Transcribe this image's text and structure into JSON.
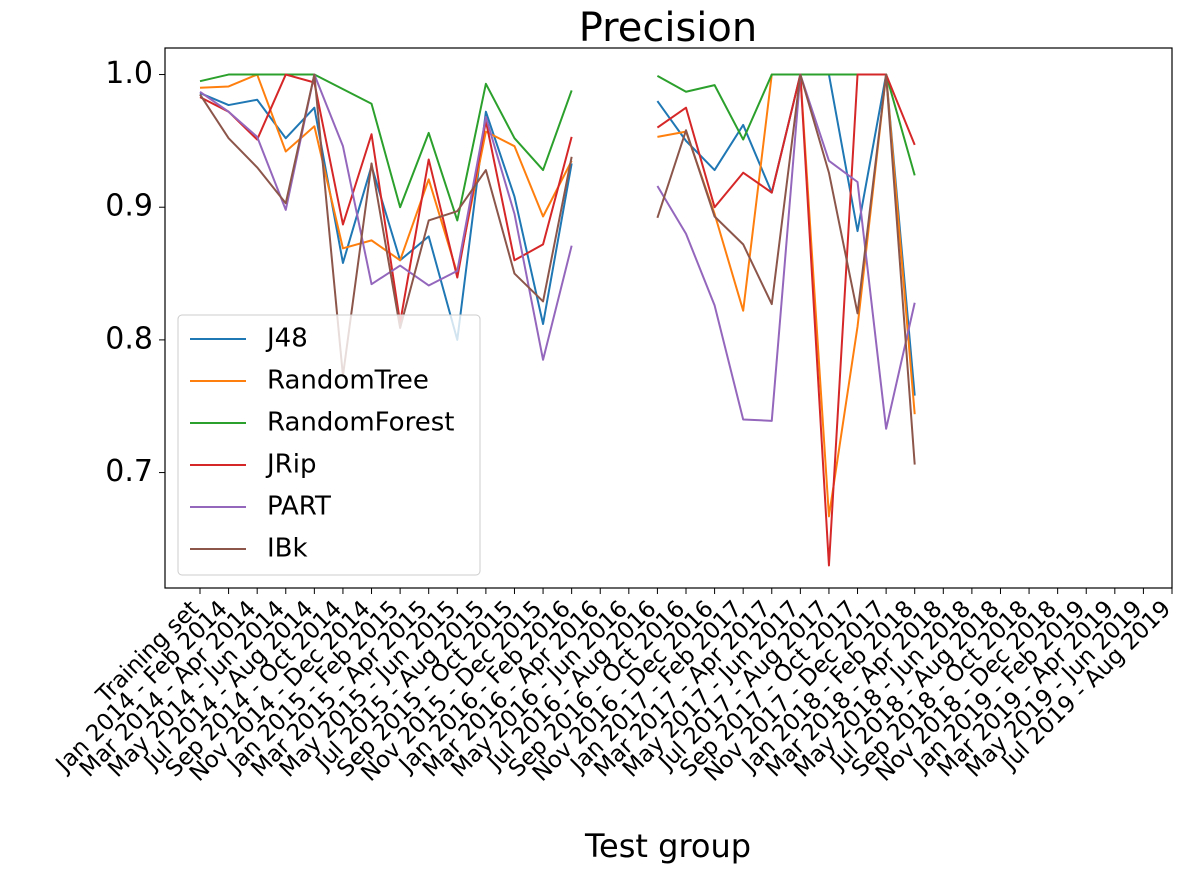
{
  "chart_data": {
    "type": "line",
    "title": "Precision",
    "x_label": "Test group",
    "categories": [
      "Training set",
      "Jan 2014 - Feb 2014",
      "Mar 2014 - Apr 2014",
      "May 2014 - Jun 2014",
      "Jul 2014 - Aug 2014",
      "Sep 2014 - Oct 2014",
      "Nov 2014 - Dec 2014",
      "Jan 2015 - Feb 2015",
      "Mar 2015 - Apr 2015",
      "May 2015 - Jun 2015",
      "Jul 2015 - Aug 2015",
      "Sep 2015 - Oct 2015",
      "Nov 2015 - Dec 2015",
      "Jan 2016 - Feb 2016",
      "Mar 2016 - Apr 2016",
      "May 2016 - Jun 2016",
      "Jul 2016 - Aug 2016",
      "Sep 2016 - Oct 2016",
      "Nov 2016 - Dec 2016",
      "Jan 2017 - Feb 2017",
      "Mar 2017 - Apr 2017",
      "May 2017 - Jun 2017",
      "Jul 2017 - Aug 2017",
      "Sep 2017 - Oct 2017",
      "Nov 2017 - Dec 2017",
      "Jan 2018 - Feb 2018",
      "Mar 2018 - Apr 2018",
      "May 2018 - Jun 2018",
      "Jul 2018 - Aug 2018",
      "Sep 2018 - Oct 2018",
      "Nov 2018 - Dec 2018",
      "Jan 2019 - Feb 2019",
      "Mar 2019 - Apr 2019",
      "May 2019 - Jun 2019",
      "Jul 2019 - Aug 2019"
    ],
    "series": [
      {
        "name": "J48",
        "color": "#1f77b4",
        "values": [
          0.986,
          0.977,
          0.981,
          0.952,
          0.975,
          0.858,
          0.931,
          0.86,
          0.878,
          0.8,
          0.972,
          0.908,
          0.812,
          0.933,
          null,
          null,
          0.98,
          0.95,
          0.928,
          0.962,
          0.911,
          1.0,
          1.0,
          0.882,
          1.0,
          0.758,
          null,
          null,
          null,
          null,
          null,
          null,
          null,
          null,
          null
        ]
      },
      {
        "name": "RandomTree",
        "color": "#ff7f0e",
        "values": [
          0.99,
          0.991,
          1.0,
          0.942,
          0.961,
          0.869,
          0.875,
          0.86,
          0.921,
          0.85,
          0.957,
          0.946,
          0.893,
          0.935,
          null,
          null,
          0.953,
          0.957,
          0.895,
          0.822,
          1.0,
          1.0,
          0.667,
          0.81,
          1.0,
          0.744,
          null,
          null,
          null,
          null,
          null,
          null,
          null,
          null,
          null
        ]
      },
      {
        "name": "RandomForest",
        "color": "#2ca02c",
        "values": [
          0.995,
          1.0,
          1.0,
          1.0,
          1.0,
          0.989,
          0.978,
          0.9,
          0.956,
          0.89,
          0.993,
          0.952,
          0.928,
          0.988,
          null,
          null,
          0.999,
          0.987,
          0.992,
          0.951,
          1.0,
          1.0,
          1.0,
          1.0,
          1.0,
          0.924,
          null,
          null,
          null,
          null,
          null,
          null,
          null,
          null,
          null
        ]
      },
      {
        "name": "JRip",
        "color": "#d62728",
        "values": [
          0.983,
          0.972,
          0.951,
          1.0,
          0.994,
          0.887,
          0.955,
          0.813,
          0.936,
          0.847,
          0.965,
          0.86,
          0.872,
          0.953,
          null,
          null,
          0.96,
          0.975,
          0.9,
          0.926,
          0.911,
          1.0,
          0.63,
          1.0,
          1.0,
          0.947,
          null,
          null,
          null,
          null,
          null,
          null,
          null,
          null,
          null
        ]
      },
      {
        "name": "PART",
        "color": "#9467bd",
        "values": [
          0.987,
          0.972,
          0.953,
          0.898,
          1.0,
          0.946,
          0.842,
          0.856,
          0.841,
          0.852,
          0.968,
          0.895,
          0.785,
          0.871,
          null,
          null,
          0.916,
          0.88,
          0.826,
          0.74,
          0.739,
          1.0,
          0.935,
          0.919,
          0.733,
          0.828,
          null,
          null,
          null,
          null,
          null,
          null,
          null,
          null,
          null
        ]
      },
      {
        "name": "IBk",
        "color": "#8c564b",
        "values": [
          0.985,
          0.952,
          0.93,
          0.903,
          1.0,
          0.773,
          0.933,
          0.809,
          0.89,
          0.897,
          0.928,
          0.85,
          0.829,
          0.938,
          null,
          null,
          0.892,
          0.958,
          0.893,
          0.872,
          0.827,
          1.0,
          0.926,
          0.82,
          1.0,
          0.706,
          null,
          null,
          null,
          null,
          null,
          null,
          null,
          null,
          null
        ]
      }
    ],
    "ylim": [
      0.613,
      1.02
    ],
    "yticks": [
      {
        "value": 1.0,
        "label": "1.0"
      },
      0.9,
      0.8,
      0.7
    ],
    "grid": false,
    "legend": "lower left"
  }
}
